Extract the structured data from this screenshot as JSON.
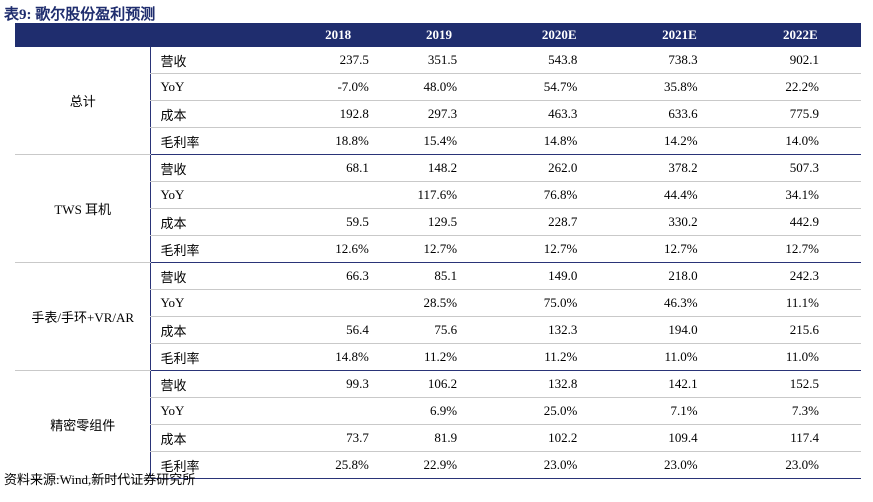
{
  "title": "表9:   歌尔股份盈利预测",
  "columns": [
    "",
    "",
    "2018",
    "2019",
    "2020E",
    "2021E",
    "2022E"
  ],
  "groups": [
    {
      "name": "总计",
      "rows": [
        {
          "metric": "营收",
          "values": [
            "237.5",
            "351.5",
            "543.8",
            "738.3",
            "902.1"
          ]
        },
        {
          "metric": "YoY",
          "values": [
            "-7.0%",
            "48.0%",
            "54.7%",
            "35.8%",
            "22.2%"
          ]
        },
        {
          "metric": "成本",
          "values": [
            "192.8",
            "297.3",
            "463.3",
            "633.6",
            "775.9"
          ]
        },
        {
          "metric": "毛利率",
          "values": [
            "18.8%",
            "15.4%",
            "14.8%",
            "14.2%",
            "14.0%"
          ]
        }
      ]
    },
    {
      "name": "TWS 耳机",
      "rows": [
        {
          "metric": "营收",
          "values": [
            "68.1",
            "148.2",
            "262.0",
            "378.2",
            "507.3"
          ]
        },
        {
          "metric": "YoY",
          "values": [
            "",
            "117.6%",
            "76.8%",
            "44.4%",
            "34.1%"
          ]
        },
        {
          "metric": "成本",
          "values": [
            "59.5",
            "129.5",
            "228.7",
            "330.2",
            "442.9"
          ]
        },
        {
          "metric": "毛利率",
          "values": [
            "12.6%",
            "12.7%",
            "12.7%",
            "12.7%",
            "12.7%"
          ]
        }
      ]
    },
    {
      "name": "手表/手环+VR/AR",
      "rows": [
        {
          "metric": "营收",
          "values": [
            "66.3",
            "85.1",
            "149.0",
            "218.0",
            "242.3"
          ]
        },
        {
          "metric": "YoY",
          "values": [
            "",
            "28.5%",
            "75.0%",
            "46.3%",
            "11.1%"
          ]
        },
        {
          "metric": "成本",
          "values": [
            "56.4",
            "75.6",
            "132.3",
            "194.0",
            "215.6"
          ]
        },
        {
          "metric": "毛利率",
          "values": [
            "14.8%",
            "11.2%",
            "11.2%",
            "11.0%",
            "11.0%"
          ]
        }
      ]
    },
    {
      "name": "精密零组件",
      "rows": [
        {
          "metric": "营收",
          "values": [
            "99.3",
            "106.2",
            "132.8",
            "142.1",
            "152.5"
          ]
        },
        {
          "metric": "YoY",
          "values": [
            "",
            "6.9%",
            "25.0%",
            "7.1%",
            "7.3%"
          ]
        },
        {
          "metric": "成本",
          "values": [
            "73.7",
            "81.9",
            "102.2",
            "109.4",
            "117.4"
          ]
        },
        {
          "metric": "毛利率",
          "values": [
            "25.8%",
            "22.9%",
            "23.0%",
            "23.0%",
            "23.0%"
          ]
        }
      ]
    }
  ],
  "source": "资料来源:Wind,新时代证券研究所",
  "colors": {
    "header_bg": "#1f2d6e",
    "rule": "#2a3478",
    "grid": "#c9c9c9"
  }
}
